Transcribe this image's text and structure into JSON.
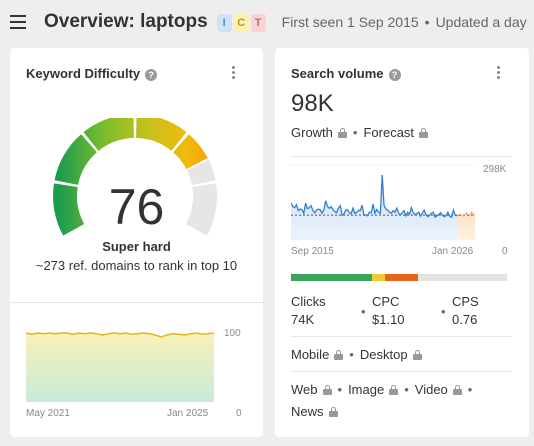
{
  "header": {
    "title": "Overview: laptops",
    "intent_badges": [
      {
        "label": "I",
        "bg": "#cfe2f8",
        "fg": "#5a8fd0"
      },
      {
        "label": "C",
        "bg": "#fbf1b2",
        "fg": "#b89a1a"
      },
      {
        "label": "T",
        "bg": "#f8d4d4",
        "fg": "#c86a6a"
      }
    ],
    "first_seen": "First seen 1 Sep 2015",
    "updated": "Updated a day",
    "separator": "•"
  },
  "keyword_difficulty": {
    "title": "Keyword Difficulty",
    "info_icon": "?",
    "value": "76",
    "label": "Super hard",
    "description": "~273 ref. domains to rank in top 10",
    "chart_data": {
      "type": "area",
      "x_start_label": "May 2021",
      "x_end_label": "Jan 2025",
      "y_max_label": "100",
      "y_min_label": "0",
      "ylim": [
        0,
        100
      ],
      "values": [
        100,
        98,
        100,
        99,
        100,
        99,
        100,
        100,
        98,
        100,
        99,
        100,
        99,
        97,
        99,
        100,
        99,
        100,
        98,
        99,
        100,
        99,
        97,
        94,
        97,
        99,
        98,
        97,
        99,
        100,
        98,
        99,
        100
      ]
    }
  },
  "search_volume": {
    "title": "Search volume",
    "info_icon": "?",
    "value": "98K",
    "growth_label": "Growth",
    "forecast_label": "Forecast",
    "chart_data": {
      "type": "line",
      "x_start_label": "Sep 2015",
      "x_end_label": "Jan 2026",
      "y_max_label": "298K",
      "y_min_label": "0",
      "ylim": [
        0,
        298
      ],
      "values": [
        150,
        135,
        130,
        142,
        118,
        125,
        122,
        108,
        148,
        126,
        130,
        138,
        118,
        110,
        120,
        124,
        122,
        108,
        120,
        158,
        135,
        128,
        134,
        122,
        114,
        110,
        128,
        138,
        100,
        104,
        120,
        122,
        109,
        106,
        128,
        107,
        112,
        120,
        118,
        140,
        100,
        102,
        98,
        112,
        110,
        145,
        108,
        123,
        112,
        108,
        262,
        140,
        125,
        120,
        112,
        108,
        118,
        112,
        128,
        108,
        102,
        110,
        118,
        98,
        112,
        104,
        130,
        110,
        102,
        106,
        112,
        96,
        108,
        120,
        102,
        94,
        100,
        108,
        112,
        92,
        98,
        102,
        110,
        100,
        94,
        98,
        112,
        96,
        92,
        120,
        100,
        98
      ],
      "forecast_values": [
        98,
        104,
        96,
        108,
        100,
        112,
        98
      ],
      "reference_value": 100
    },
    "click_bar": [
      {
        "share": 0.375,
        "color": "#3aa45c"
      },
      {
        "share": 0.06,
        "color": "#f0cc34"
      },
      {
        "share": 0.155,
        "color": "#e8661b"
      },
      {
        "share": 0.41,
        "color": "#e3e3e3"
      }
    ],
    "stats": [
      {
        "label": "Clicks",
        "value": "74K"
      },
      {
        "label": "CPC",
        "value": "$1.10"
      },
      {
        "label": "CPS",
        "value": "0.76"
      }
    ],
    "devices": [
      "Mobile",
      "Desktop"
    ],
    "search_types": [
      "Web",
      "Image",
      "Video",
      "News"
    ]
  }
}
